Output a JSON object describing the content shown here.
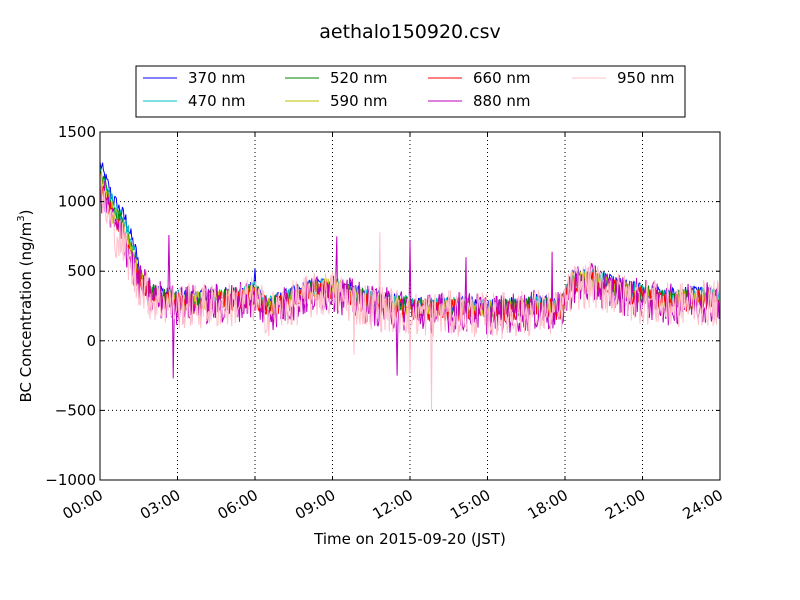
{
  "chart_data": {
    "type": "line",
    "title": "aethalo150920.csv",
    "xlabel": "Time on 2015-09-20 (JST)",
    "ylabel_main": "BC Concentration (ng/m",
    "ylabel_sup": "3",
    "ylabel_close": ")",
    "xlim": [
      "00:00",
      "24:00"
    ],
    "ylim": [
      -1000,
      1500
    ],
    "x_ticks": [
      "00:00",
      "03:00",
      "06:00",
      "09:00",
      "12:00",
      "15:00",
      "18:00",
      "21:00",
      "24:00"
    ],
    "y_ticks": [
      "−1000",
      "−500",
      "0",
      "500",
      "1000",
      "1500"
    ],
    "y_tick_values": [
      -1000,
      -500,
      0,
      500,
      1000,
      1500
    ],
    "grid": true,
    "legend_position": "top-center",
    "sampling": "1-minute samples, 00:00 to 24:00, approximate values read from the plot",
    "series": [
      {
        "name": "370 nm",
        "color": "#0000ff"
      },
      {
        "name": "470 nm",
        "color": "#00bfbf"
      },
      {
        "name": "520 nm",
        "color": "#008000"
      },
      {
        "name": "590 nm",
        "color": "#bfbf00"
      },
      {
        "name": "660 nm",
        "color": "#ff0000"
      },
      {
        "name": "880 nm",
        "color": "#bf00bf"
      },
      {
        "name": "950 nm",
        "color": "#ffc0cb"
      }
    ],
    "baseline_profile": {
      "hours": [
        0.0,
        0.5,
        1.0,
        1.5,
        2.0,
        3.0,
        4.0,
        5.0,
        6.0,
        6.5,
        7.0,
        8.0,
        9.0,
        10.0,
        11.0,
        12.0,
        13.0,
        14.0,
        15.0,
        16.0,
        17.0,
        17.8,
        18.3,
        19.0,
        20.0,
        21.0,
        22.0,
        23.0,
        24.0
      ],
      "values": [
        1150,
        900,
        750,
        450,
        330,
        280,
        280,
        290,
        330,
        230,
        260,
        340,
        380,
        300,
        260,
        230,
        220,
        230,
        210,
        220,
        240,
        220,
        420,
        430,
        360,
        320,
        280,
        300,
        300
      ]
    },
    "noise_amplitude_per_series": [
      60,
      65,
      70,
      75,
      80,
      150,
      170
    ],
    "notable_spikes": [
      {
        "series": "880 nm",
        "time": "02:40",
        "value": 760
      },
      {
        "series": "880 nm",
        "time": "02:50",
        "value": -270
      },
      {
        "series": "370 nm",
        "time": "06:00",
        "value": 520
      },
      {
        "series": "880 nm",
        "time": "09:10",
        "value": 750
      },
      {
        "series": "950 nm",
        "time": "09:50",
        "value": -100
      },
      {
        "series": "950 nm",
        "time": "10:50",
        "value": 780
      },
      {
        "series": "880 nm",
        "time": "11:30",
        "value": -250
      },
      {
        "series": "880 nm",
        "time": "12:00",
        "value": 720
      },
      {
        "series": "950 nm",
        "time": "12:00",
        "value": -230
      },
      {
        "series": "950 nm",
        "time": "12:50",
        "value": -500
      },
      {
        "series": "880 nm",
        "time": "14:10",
        "value": 600
      },
      {
        "series": "880 nm",
        "time": "17:30",
        "value": 640
      },
      {
        "series": "370 nm",
        "time": "19:10",
        "value": 540
      },
      {
        "series": "880 nm",
        "time": "23:30",
        "value": 420
      }
    ]
  }
}
